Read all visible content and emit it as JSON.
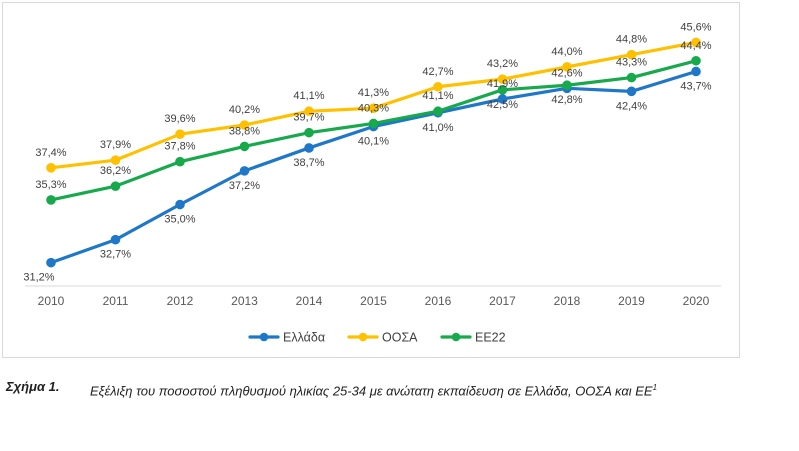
{
  "chart_data": {
    "type": "line",
    "categories": [
      "2010",
      "2011",
      "2012",
      "2013",
      "2014",
      "2015",
      "2016",
      "2017",
      "2018",
      "2019",
      "2020"
    ],
    "series": [
      {
        "name": "Ελλάδα",
        "color": "#1f77c8",
        "values": [
          31.2,
          32.7,
          35.0,
          37.2,
          38.7,
          40.1,
          41.0,
          41.9,
          42.6,
          42.4,
          43.7
        ],
        "labels": [
          "31,2%",
          "32,7%",
          "35,0%",
          "37,2%",
          "38,7%",
          "40,1%",
          "41,0%",
          "41,9%",
          "42,6%",
          "42,4%",
          "43,7%"
        ]
      },
      {
        "name": "ΟΟΣΑ",
        "color": "#ffc000",
        "values": [
          37.4,
          37.9,
          39.6,
          40.2,
          41.1,
          41.3,
          42.7,
          43.2,
          44.0,
          44.8,
          45.6
        ],
        "labels": [
          "37,4%",
          "37,9%",
          "39,6%",
          "40,2%",
          "41,1%",
          "41,3%",
          "42,7%",
          "43,2%",
          "44,0%",
          "44,8%",
          "45,6%"
        ]
      },
      {
        "name": "ΕΕ22",
        "color": "#17a94b",
        "values": [
          35.3,
          36.2,
          37.8,
          38.8,
          39.7,
          40.3,
          41.1,
          42.5,
          42.8,
          43.3,
          44.4
        ],
        "labels": [
          "35,3%",
          "36,2%",
          "37,8%",
          "38,8%",
          "39,7%",
          "40,3%",
          "41,1%",
          "42,5%",
          "42,8%",
          "43,3%",
          "44,4%"
        ]
      }
    ],
    "ylim": [
      30,
      47
    ],
    "grid": false,
    "legend_position": "bottom"
  },
  "caption": {
    "label": "Σχήμα 1.",
    "text": "Εξέλιξη του ποσοστού πληθυσμού ηλικίας 25-34 με ανώτατη εκπαίδευση σε Ελλάδα, ΟΟΣΑ και ΕΕ",
    "superscript": "1"
  }
}
